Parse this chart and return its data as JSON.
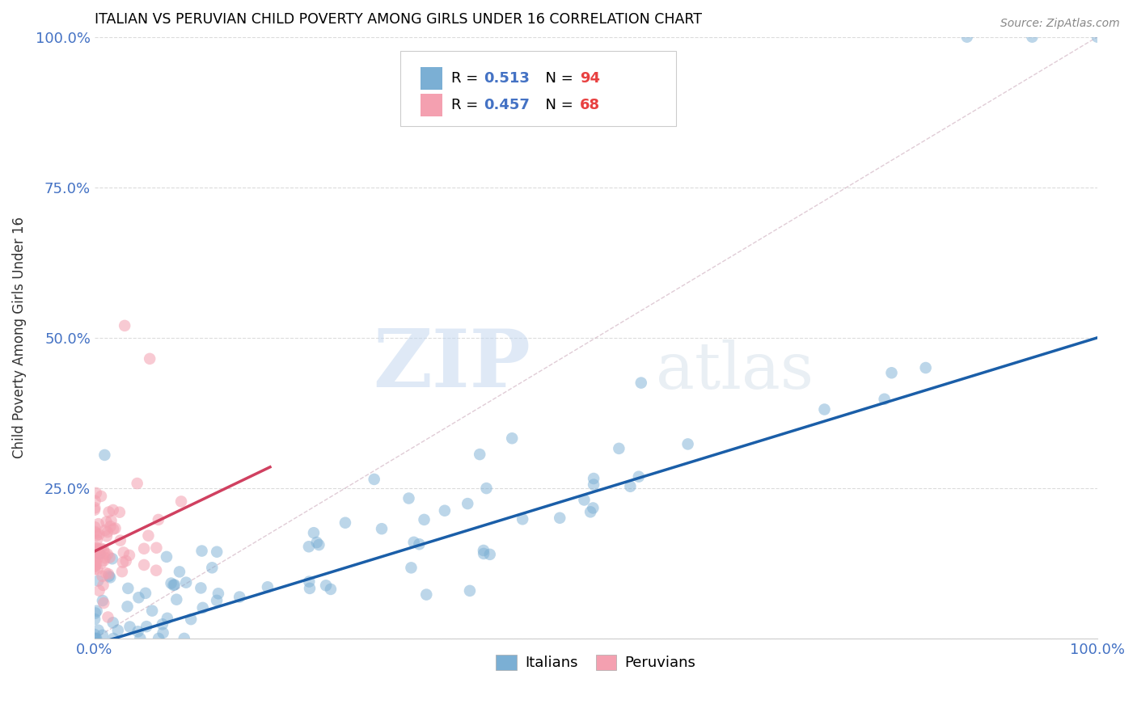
{
  "title": "ITALIAN VS PERUVIAN CHILD POVERTY AMONG GIRLS UNDER 16 CORRELATION CHART",
  "source": "Source: ZipAtlas.com",
  "ylabel": "Child Poverty Among Girls Under 16",
  "xlim": [
    0,
    1
  ],
  "ylim": [
    0,
    1
  ],
  "xticks": [
    0.0,
    0.25,
    0.5,
    0.75,
    1.0
  ],
  "yticks": [
    0.0,
    0.25,
    0.5,
    0.75,
    1.0
  ],
  "xticklabels": [
    "0.0%",
    "",
    "",
    "",
    "100.0%"
  ],
  "yticklabels": [
    "",
    "25.0%",
    "50.0%",
    "75.0%",
    "100.0%"
  ],
  "italian_color": "#7bafd4",
  "peruvian_color": "#f4a0b0",
  "italian_line_color": "#1a5ea8",
  "peruvian_line_color": "#d04060",
  "diagonal_color": "#ccaabb",
  "italian_R": 0.513,
  "italian_N": 94,
  "peruvian_R": 0.457,
  "peruvian_N": 68,
  "watermark_zip": "ZIP",
  "watermark_atlas": "atlas",
  "background_color": "#ffffff",
  "grid_color": "#cccccc",
  "title_color": "#000000",
  "axis_label_color": "#333333",
  "tick_label_color": "#4472c4",
  "source_color": "#888888",
  "legend_R_color": "#4472c4",
  "legend_N_color": "#e84040"
}
